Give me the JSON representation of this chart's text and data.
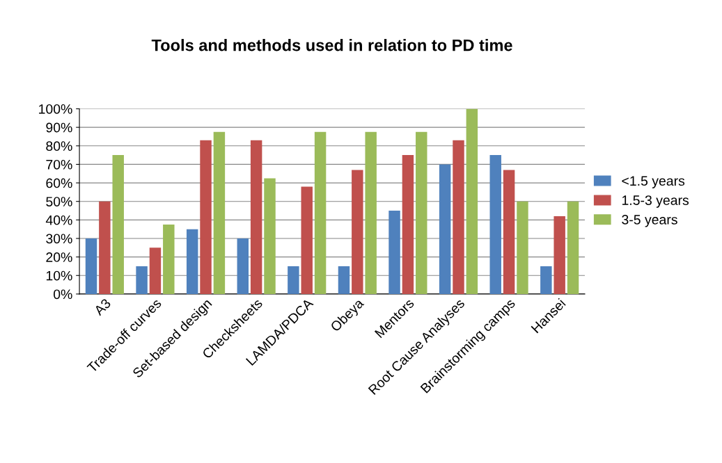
{
  "chart_data": {
    "type": "bar",
    "title": "Tools and methods used in relation to PD time",
    "categories": [
      "A3",
      "Trade-off curves",
      "Set-based design",
      "Checksheets",
      "LAMDA/PDCA",
      "Obeya",
      "Mentors",
      "Root Cause Analyses",
      "Brainstorming camps",
      "Hansei"
    ],
    "series": [
      {
        "name": "<1.5 years",
        "color": "#4f81bd",
        "values": [
          30,
          15,
          35,
          30,
          15,
          15,
          45,
          70,
          75,
          15
        ]
      },
      {
        "name": "1.5-3 years",
        "color": "#c0504d",
        "values": [
          50,
          25,
          83,
          83,
          58,
          67,
          75,
          83,
          67,
          42
        ]
      },
      {
        "name": "3-5 years",
        "color": "#9bbb59",
        "values": [
          75,
          37.5,
          87.5,
          62.5,
          87.5,
          87.5,
          87.5,
          100,
          50,
          50
        ]
      }
    ],
    "ylim": [
      0,
      100
    ],
    "yticks": [
      {
        "value": 0,
        "label": "0%"
      },
      {
        "value": 10,
        "label": "10%"
      },
      {
        "value": 20,
        "label": "20%"
      },
      {
        "value": 30,
        "label": "30%"
      },
      {
        "value": 40,
        "label": "40%"
      },
      {
        "value": 50,
        "label": "50%"
      },
      {
        "value": 60,
        "label": "60%"
      },
      {
        "value": 70,
        "label": "70%"
      },
      {
        "value": 80,
        "label": "80%"
      },
      {
        "value": 90,
        "label": "90%"
      },
      {
        "value": 100,
        "label": "100%"
      }
    ],
    "grid": "y",
    "legend": "right"
  }
}
